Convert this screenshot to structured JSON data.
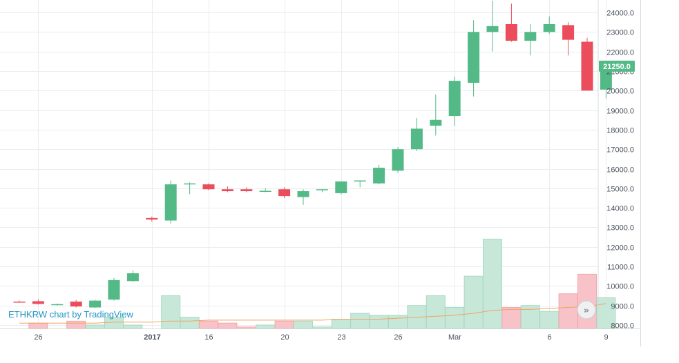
{
  "chart_data": {
    "type": "candlestick",
    "symbol": "ETHKRW",
    "watermark": "ETHKRW chart by TradingView",
    "last_price_label": "21250.0",
    "colors": {
      "up": "#53b987",
      "down": "#eb4d5c",
      "up_volume": "#c7e8d9",
      "down_volume": "#f8c3c8",
      "ma_line": "#f0a35e",
      "grid": "#e9ecf0",
      "axis_text": "#4c525e",
      "last_price_bg": "#53b987"
    },
    "y_axis": {
      "range": [
        7900,
        24500
      ],
      "ticks": [
        "8000.0",
        "9000.0",
        "10000.0",
        "11000.0",
        "12000.0",
        "13000.0",
        "14000.0",
        "15000.0",
        "16000.0",
        "17000.0",
        "18000.0",
        "19000.0",
        "20000.0",
        "21000.0",
        "22000.0",
        "23000.0",
        "24000.0"
      ]
    },
    "x_axis": {
      "ticks": [
        {
          "label": "26",
          "index": 1,
          "bold": false
        },
        {
          "label": "2017",
          "index": 7,
          "bold": true
        },
        {
          "label": "16",
          "index": 10,
          "bold": false
        },
        {
          "label": "20",
          "index": 14,
          "bold": false
        },
        {
          "label": "23",
          "index": 17,
          "bold": false
        },
        {
          "label": "26",
          "index": 20,
          "bold": false
        },
        {
          "label": "Mar",
          "index": 23,
          "bold": false
        },
        {
          "label": "6",
          "index": 28,
          "bold": false
        },
        {
          "label": "9",
          "index": 31,
          "bold": false
        }
      ]
    },
    "candles": [
      {
        "o": 9200,
        "h": 9250,
        "l": 9150,
        "c": 9180
      },
      {
        "o": 9220,
        "h": 9300,
        "l": 9050,
        "c": 9080
      },
      {
        "o": 9050,
        "h": 9100,
        "l": 9000,
        "c": 9070
      },
      {
        "o": 9200,
        "h": 9280,
        "l": 8900,
        "c": 8950
      },
      {
        "o": 8900,
        "h": 9300,
        "l": 8880,
        "c": 9250
      },
      {
        "o": 9300,
        "h": 10400,
        "l": 9250,
        "c": 10300
      },
      {
        "o": 10250,
        "h": 10800,
        "l": 10200,
        "c": 10650
      },
      {
        "o": 13480,
        "h": 13550,
        "l": 13300,
        "c": 13400
      },
      {
        "o": 13350,
        "h": 15400,
        "l": 13200,
        "c": 15200
      },
      {
        "o": 15200,
        "h": 15300,
        "l": 14700,
        "c": 15250
      },
      {
        "o": 15200,
        "h": 15250,
        "l": 14900,
        "c": 14950
      },
      {
        "o": 14950,
        "h": 15100,
        "l": 14800,
        "c": 14850
      },
      {
        "o": 14950,
        "h": 15050,
        "l": 14800,
        "c": 14850
      },
      {
        "o": 14850,
        "h": 15000,
        "l": 14800,
        "c": 14870
      },
      {
        "o": 14950,
        "h": 15050,
        "l": 14500,
        "c": 14600
      },
      {
        "o": 14550,
        "h": 14950,
        "l": 14150,
        "c": 14850
      },
      {
        "o": 14900,
        "h": 14950,
        "l": 14800,
        "c": 14950
      },
      {
        "o": 14750,
        "h": 15350,
        "l": 14700,
        "c": 15350
      },
      {
        "o": 15350,
        "h": 15400,
        "l": 15050,
        "c": 15400
      },
      {
        "o": 15250,
        "h": 16200,
        "l": 15200,
        "c": 16050
      },
      {
        "o": 15900,
        "h": 17100,
        "l": 15800,
        "c": 17000
      },
      {
        "o": 17000,
        "h": 18600,
        "l": 16900,
        "c": 18050
      },
      {
        "o": 18200,
        "h": 19800,
        "l": 17700,
        "c": 18500
      },
      {
        "o": 18700,
        "h": 20700,
        "l": 18200,
        "c": 20500
      },
      {
        "o": 20400,
        "h": 23600,
        "l": 19700,
        "c": 23000
      },
      {
        "o": 23000,
        "h": 24600,
        "l": 22000,
        "c": 23300
      },
      {
        "o": 23400,
        "h": 24450,
        "l": 22500,
        "c": 22550
      },
      {
        "o": 22550,
        "h": 23400,
        "l": 21800,
        "c": 23000
      },
      {
        "o": 23000,
        "h": 23800,
        "l": 22900,
        "c": 23400
      },
      {
        "o": 23350,
        "h": 23500,
        "l": 21800,
        "c": 22600
      },
      {
        "o": 22500,
        "h": 22700,
        "l": 20000,
        "c": 20000
      },
      {
        "o": 20050,
        "h": 21350,
        "l": 19600,
        "c": 21250
      }
    ],
    "volume": [
      {
        "v": 7.5,
        "up": false
      },
      {
        "v": 8.1,
        "up": false
      },
      {
        "v": 7.8,
        "up": false
      },
      {
        "v": 8.2,
        "up": false
      },
      {
        "v": 8.0,
        "up": true
      },
      {
        "v": 8.4,
        "up": true
      },
      {
        "v": 8.0,
        "up": true
      },
      {
        "v": 7.8,
        "up": true
      },
      {
        "v": 9.5,
        "up": true
      },
      {
        "v": 8.4,
        "up": true
      },
      {
        "v": 8.2,
        "up": false
      },
      {
        "v": 8.1,
        "up": false
      },
      {
        "v": 7.9,
        "up": false
      },
      {
        "v": 8.0,
        "up": true
      },
      {
        "v": 8.2,
        "up": false
      },
      {
        "v": 8.2,
        "up": true
      },
      {
        "v": 7.9,
        "up": true
      },
      {
        "v": 8.3,
        "up": true
      },
      {
        "v": 8.6,
        "up": true
      },
      {
        "v": 8.5,
        "up": true
      },
      {
        "v": 8.5,
        "up": true
      },
      {
        "v": 9.0,
        "up": true
      },
      {
        "v": 9.5,
        "up": true
      },
      {
        "v": 8.9,
        "up": true
      },
      {
        "v": 10.5,
        "up": true
      },
      {
        "v": 12.4,
        "up": true
      },
      {
        "v": 8.9,
        "up": false
      },
      {
        "v": 9.0,
        "up": true
      },
      {
        "v": 8.7,
        "up": true
      },
      {
        "v": 9.6,
        "up": false
      },
      {
        "v": 10.6,
        "up": false
      },
      {
        "v": 9.4,
        "up": true
      }
    ],
    "volume_ma": [
      8.1,
      8.1,
      8.1,
      8.1,
      8.1,
      8.15,
      8.15,
      8.15,
      8.2,
      8.2,
      8.25,
      8.25,
      8.25,
      8.25,
      8.25,
      8.25,
      8.25,
      8.3,
      8.3,
      8.3,
      8.35,
      8.4,
      8.45,
      8.5,
      8.6,
      8.75,
      8.8,
      8.8,
      8.85,
      8.9,
      8.95,
      9.1
    ]
  }
}
